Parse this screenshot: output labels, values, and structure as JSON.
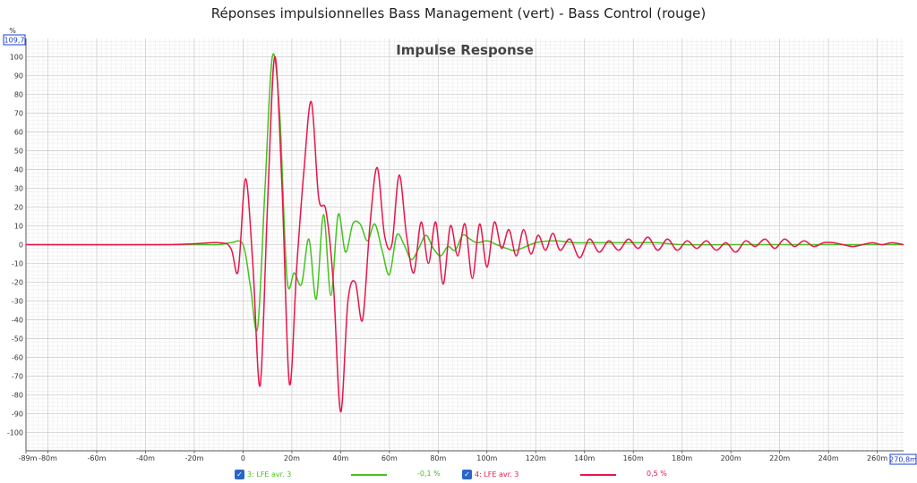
{
  "window": {
    "title": "Réponses impulsionnelles Bass Management (vert) - Bass Control (rouge)"
  },
  "colors": {
    "series1": "#44c21e",
    "series2": "#e8154a",
    "axis_box": "#1a3fd0",
    "grid_major": "#cfcfcf",
    "grid_minor": "#ececec"
  },
  "axis_boxes": {
    "y_top": "109,7",
    "x_right": "270,8m"
  },
  "y_axis": {
    "unit": "%"
  },
  "legend": [
    {
      "checkbox_checked": true,
      "label": "3: LFE avr. 3",
      "value": "-0,1 %",
      "color": "#44c21e"
    },
    {
      "checkbox_checked": true,
      "label": "4: LFE avr. 3",
      "value": "0,5 %",
      "color": "#e8154a"
    }
  ],
  "chart_data": {
    "type": "line",
    "title": "Impulse Response",
    "xlabel": "",
    "ylabel": "%",
    "xlim": [
      -89,
      270.8
    ],
    "ylim": [
      -109.7,
      109.7
    ],
    "grid": true,
    "x_ticks": [
      -89,
      -80,
      -60,
      -40,
      -20,
      0,
      20,
      40,
      60,
      80,
      100,
      120,
      140,
      160,
      180,
      200,
      220,
      240,
      260,
      270.8
    ],
    "x_tick_labels": [
      "-89m",
      "-80m",
      "-60m",
      "-40m",
      "-20m",
      "0",
      "20m",
      "40m",
      "60m",
      "80m",
      "100m",
      "120m",
      "140m",
      "160m",
      "180m",
      "200m",
      "220m",
      "240m",
      "260m",
      "270,8m"
    ],
    "y_ticks": [
      100,
      90,
      80,
      70,
      60,
      50,
      40,
      30,
      20,
      10,
      0,
      -10,
      -20,
      -30,
      -40,
      -50,
      -60,
      -70,
      -80,
      -90,
      -100
    ],
    "y_tick_labels": [
      "100",
      "90",
      "80",
      "70",
      "60",
      "50",
      "40",
      "30",
      "20",
      "10",
      "0",
      "-10",
      "-20",
      "-30",
      "-40",
      "-50",
      "-60",
      "-70",
      "-80",
      "-90",
      "-100"
    ],
    "series": [
      {
        "name": "3: LFE avr. 3",
        "color": "#44c21e",
        "x": [
          -89,
          -20,
          -10,
          -5,
          0,
          3,
          6,
          9,
          12,
          15,
          18,
          21,
          24,
          27,
          30,
          33,
          36,
          39,
          42,
          45,
          48,
          51,
          54,
          57,
          60,
          63,
          66,
          69,
          72,
          75,
          78,
          81,
          84,
          87,
          90,
          93,
          96,
          100,
          104,
          108,
          112,
          120,
          128,
          136,
          144,
          152,
          160,
          170,
          180,
          200,
          220,
          240,
          270.8
        ],
        "y": [
          0,
          0,
          0,
          1,
          0,
          -22,
          -44,
          30,
          100,
          70,
          -18,
          -15,
          -21,
          3,
          -29,
          16,
          -27,
          16,
          -4,
          11,
          11,
          2,
          11,
          -3,
          -16,
          5,
          0,
          -8,
          -2,
          5,
          -2,
          -6,
          -1,
          -3,
          5,
          3,
          1,
          2,
          0,
          -2,
          -3,
          1,
          2,
          1,
          1,
          1,
          1,
          1,
          0,
          0,
          0,
          0,
          0
        ]
      },
      {
        "name": "4: LFE avr. 3",
        "color": "#e8154a",
        "x": [
          -89,
          -30,
          -10,
          -5,
          -2,
          1,
          4,
          7,
          10,
          13,
          16,
          19,
          22,
          25,
          28,
          31,
          34,
          37,
          40,
          43,
          46,
          49,
          52,
          55,
          58,
          61,
          64,
          67,
          70,
          73,
          76,
          79,
          82,
          85,
          88,
          91,
          94,
          97,
          100,
          103,
          106,
          109,
          112,
          115,
          118,
          121,
          124,
          127,
          130,
          134,
          138,
          142,
          146,
          150,
          154,
          158,
          162,
          166,
          170,
          174,
          178,
          182,
          186,
          190,
          194,
          198,
          202,
          206,
          210,
          214,
          218,
          222,
          226,
          230,
          234,
          238,
          242,
          246,
          250,
          254,
          258,
          262,
          266,
          270.8
        ],
        "y": [
          0,
          0,
          1,
          -2,
          -14,
          35,
          -10,
          -75,
          20,
          100,
          30,
          -74,
          -12,
          40,
          76,
          25,
          18,
          -20,
          -89,
          -30,
          -20,
          -40,
          10,
          41,
          5,
          0,
          37,
          5,
          -15,
          12,
          -10,
          12,
          -21,
          10,
          -6,
          11,
          -18,
          11,
          -12,
          12,
          -2,
          8,
          -6,
          8,
          -5,
          5,
          -3,
          6,
          -3,
          3,
          -7,
          3,
          -4,
          2,
          -3,
          3,
          -2,
          4,
          -3,
          3,
          -3,
          2,
          -2,
          2,
          -3,
          1,
          -4,
          2,
          -1,
          3,
          -2,
          3,
          -1,
          2,
          -1,
          1,
          1,
          0,
          -1,
          0,
          1,
          0,
          1,
          0
        ]
      }
    ]
  }
}
